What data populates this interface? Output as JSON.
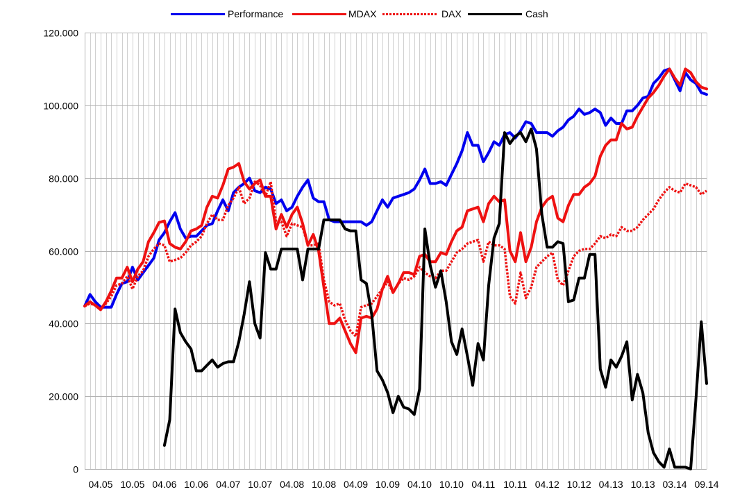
{
  "chart_data": {
    "type": "line",
    "title": "",
    "xlabel": "",
    "ylabel": "",
    "ylim": [
      0,
      120000
    ],
    "y_ticks": [
      0,
      20000,
      40000,
      60000,
      80000,
      100000,
      120000
    ],
    "y_tick_labels": [
      "0",
      "20.000",
      "40.000",
      "60.000",
      "80.000",
      "100.000",
      "120.000"
    ],
    "x_tick_labels": [
      "04.05",
      "10.05",
      "04.06",
      "10.06",
      "04.07",
      "10.07",
      "04.08",
      "10.08",
      "04.09",
      "10.09",
      "04.10",
      "10.10",
      "04.11",
      "10.11",
      "04.12",
      "10.12",
      "04.13",
      "10.13",
      "03.14",
      "09.14"
    ],
    "grid": true,
    "legend_position": "top-center",
    "series": [
      {
        "name": "Performance",
        "color": "#0000ee",
        "style": "solid",
        "values": [
          44800,
          48000,
          46000,
          44500,
          44500,
          44500,
          48000,
          51000,
          51500,
          55500,
          52000,
          54000,
          56000,
          58000,
          63000,
          65000,
          68000,
          70500,
          66000,
          63500,
          64000,
          64000,
          65500,
          67000,
          67500,
          71000,
          74000,
          71000,
          76000,
          77500,
          78500,
          80000,
          76500,
          76000,
          77500,
          77000,
          73000,
          74000,
          71000,
          72000,
          75000,
          77500,
          79500,
          74500,
          73500,
          73500,
          68500,
          68000,
          68000,
          68000,
          68000,
          68000,
          68000,
          67000,
          68000,
          71000,
          74000,
          72000,
          74500,
          75000,
          75500,
          76000,
          77000,
          79500,
          82500,
          78500,
          78500,
          79000,
          78000,
          81000,
          84000,
          87500,
          92500,
          89000,
          89000,
          84500,
          87000,
          90000,
          89000,
          92000,
          92500,
          91000,
          93000,
          95500,
          95000,
          92500,
          92500,
          92500,
          91500,
          93000,
          94000,
          96000,
          97000,
          99000,
          97500,
          98000,
          99000,
          98000,
          94500,
          96500,
          95000,
          95000,
          98500,
          98500,
          100000,
          102000,
          102500,
          106000,
          107500,
          109500,
          110000,
          107000,
          104000,
          109000,
          107000,
          106000,
          103500,
          103000
        ],
        "values_note": "monthly values from 2005 onward"
      },
      {
        "name": "MDAX",
        "color": "#ee1111",
        "style": "solid",
        "values": [
          44800,
          46000,
          45000,
          43800,
          46000,
          49000,
          52500,
          52500,
          55500,
          51500,
          55000,
          57000,
          62500,
          65000,
          67800,
          68200,
          62000,
          61000,
          60500,
          62500,
          65500,
          66000,
          67000,
          72000,
          75000,
          74500,
          78000,
          82500,
          83000,
          84000,
          79000,
          77000,
          78500,
          79500,
          75000,
          75000,
          66000,
          70000,
          66500,
          70000,
          72000,
          67500,
          61500,
          64500,
          60000,
          50000,
          40000,
          40000,
          41500,
          38000,
          34500,
          32000,
          41500,
          42000,
          41500,
          44000,
          49500,
          53000,
          48500,
          51000,
          54000,
          54000,
          53500,
          58500,
          59000,
          57000,
          57000,
          59500,
          59000,
          62500,
          65500,
          66500,
          71000,
          71500,
          72000,
          68000,
          73000,
          75000,
          73500,
          74000,
          60000,
          57000,
          65000,
          57000,
          61000,
          68000,
          72000,
          74000,
          75000,
          69000,
          68000,
          72500,
          75500,
          75500,
          77500,
          78500,
          80500,
          86000,
          89000,
          90500,
          90500,
          95000,
          93500,
          94000,
          97000,
          99500,
          102000,
          103500,
          105500,
          108000,
          110000,
          107500,
          105500,
          110000,
          109000,
          106500,
          105000,
          104500
        ]
      },
      {
        "name": "DAX",
        "color": "#ee1111",
        "style": "dotted",
        "values": [
          44800,
          45500,
          45000,
          44000,
          45500,
          47500,
          50500,
          51000,
          53000,
          49500,
          53000,
          54500,
          58500,
          60500,
          62000,
          61500,
          57000,
          57500,
          58000,
          59500,
          61500,
          62500,
          64000,
          67500,
          70000,
          68500,
          68500,
          72500,
          74500,
          77500,
          73000,
          74500,
          79000,
          78000,
          75000,
          79000,
          68000,
          68000,
          64000,
          67500,
          67000,
          66500,
          61500,
          61500,
          62000,
          52000,
          46000,
          45000,
          45500,
          41000,
          38000,
          36500,
          44500,
          45000,
          45500,
          47500,
          49500,
          51500,
          48500,
          51000,
          52500,
          52000,
          53000,
          55500,
          54000,
          53000,
          52500,
          54500,
          54500,
          57000,
          59500,
          60500,
          62000,
          62500,
          63000,
          57000,
          62500,
          61500,
          61500,
          60500,
          47500,
          45500,
          54000,
          47000,
          50000,
          55500,
          57000,
          58500,
          59500,
          52000,
          50500,
          54500,
          58500,
          60000,
          60500,
          60500,
          62000,
          64000,
          63500,
          64500,
          64000,
          66500,
          65500,
          65500,
          66500,
          68500,
          70000,
          71500,
          74000,
          76000,
          77500,
          76500,
          76000,
          78500,
          78000,
          77500,
          75500,
          76500
        ]
      },
      {
        "name": "Cash",
        "color": "#000000",
        "style": "solid",
        "values": [
          null,
          null,
          null,
          null,
          null,
          null,
          null,
          null,
          null,
          null,
          null,
          null,
          null,
          null,
          null,
          6500,
          13500,
          44000,
          37500,
          35000,
          33000,
          27000,
          27000,
          28500,
          30000,
          28000,
          29000,
          29500,
          29500,
          35000,
          42500,
          51500,
          40000,
          36000,
          59500,
          55000,
          55000,
          60500,
          60500,
          60500,
          60500,
          52000,
          60500,
          60500,
          60500,
          68500,
          68500,
          68500,
          68500,
          66000,
          65500,
          65500,
          52000,
          51000,
          42500,
          27000,
          24500,
          21000,
          15500,
          20000,
          17000,
          16500,
          15000,
          22000,
          66000,
          56000,
          50000,
          54500,
          46000,
          35000,
          31500,
          38500,
          31000,
          23000,
          34500,
          30000,
          50500,
          63500,
          67500,
          92500,
          89500,
          91500,
          92500,
          90000,
          93500,
          88000,
          70000,
          61000,
          61000,
          62500,
          62000,
          46000,
          46500,
          52500,
          52500,
          59000,
          59000,
          27500,
          22500,
          30000,
          28000,
          31000,
          35000,
          19000,
          26000,
          21000,
          10000,
          4500,
          2000,
          500,
          5500,
          500,
          500,
          500,
          0,
          19500,
          40500,
          23500
        ]
      }
    ]
  }
}
